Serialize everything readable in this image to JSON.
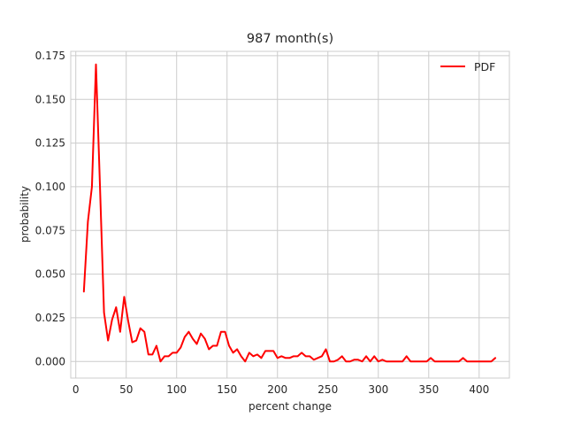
{
  "chart_data": {
    "type": "line",
    "title": "987 month(s)",
    "xlabel": "percent change",
    "ylabel": "probability",
    "xlim": [
      -5,
      430
    ],
    "ylim": [
      -0.0095,
      0.1775
    ],
    "xticks": [
      0,
      50,
      100,
      150,
      200,
      250,
      300,
      350,
      400
    ],
    "xtick_labels": [
      "0",
      "50",
      "100",
      "150",
      "200",
      "250",
      "300",
      "350",
      "400"
    ],
    "yticks": [
      0.0,
      0.025,
      0.05,
      0.075,
      0.1,
      0.125,
      0.15,
      0.175
    ],
    "ytick_labels": [
      "0.000",
      "0.025",
      "0.050",
      "0.075",
      "0.100",
      "0.125",
      "0.150",
      "0.175"
    ],
    "grid": true,
    "legend_position": "top-right",
    "series": [
      {
        "name": "PDF",
        "color": "#ff0000",
        "x": [
          8,
          12,
          16,
          20,
          24,
          28,
          32,
          36,
          40,
          44,
          48,
          52,
          56,
          60,
          64,
          68,
          72,
          76,
          80,
          84,
          88,
          92,
          96,
          100,
          104,
          108,
          112,
          116,
          120,
          124,
          128,
          132,
          136,
          140,
          144,
          148,
          152,
          156,
          160,
          164,
          168,
          172,
          176,
          180,
          184,
          188,
          192,
          196,
          200,
          204,
          208,
          212,
          216,
          220,
          224,
          228,
          232,
          236,
          240,
          244,
          248,
          252,
          256,
          260,
          264,
          268,
          272,
          276,
          280,
          284,
          288,
          292,
          296,
          300,
          304,
          308,
          312,
          316,
          320,
          324,
          328,
          332,
          336,
          340,
          344,
          348,
          352,
          356,
          360,
          364,
          368,
          372,
          376,
          380,
          384,
          388,
          392,
          396,
          400,
          404,
          408,
          412,
          416
        ],
        "y": [
          0.04,
          0.08,
          0.1,
          0.17,
          0.1,
          0.028,
          0.012,
          0.024,
          0.031,
          0.017,
          0.037,
          0.023,
          0.011,
          0.012,
          0.019,
          0.017,
          0.004,
          0.004,
          0.009,
          0.0,
          0.003,
          0.003,
          0.005,
          0.005,
          0.008,
          0.014,
          0.017,
          0.013,
          0.01,
          0.016,
          0.013,
          0.007,
          0.009,
          0.009,
          0.017,
          0.017,
          0.009,
          0.005,
          0.007,
          0.003,
          0.0,
          0.005,
          0.003,
          0.004,
          0.002,
          0.006,
          0.006,
          0.006,
          0.002,
          0.003,
          0.002,
          0.002,
          0.003,
          0.003,
          0.005,
          0.003,
          0.003,
          0.001,
          0.002,
          0.003,
          0.007,
          0.0,
          0.0,
          0.001,
          0.003,
          0.0,
          0.0,
          0.001,
          0.001,
          0.0,
          0.003,
          0.0,
          0.003,
          0.0,
          0.001,
          0.0,
          0.0,
          0.0,
          0.0,
          0.0,
          0.003,
          0.0,
          0.0,
          0.0,
          0.0,
          0.0,
          0.002,
          0.0,
          0.0,
          0.0,
          0.0,
          0.0,
          0.0,
          0.0,
          0.002,
          0.0,
          0.0,
          0.0,
          0.0,
          0.0,
          0.0,
          0.0,
          0.002
        ]
      }
    ]
  }
}
